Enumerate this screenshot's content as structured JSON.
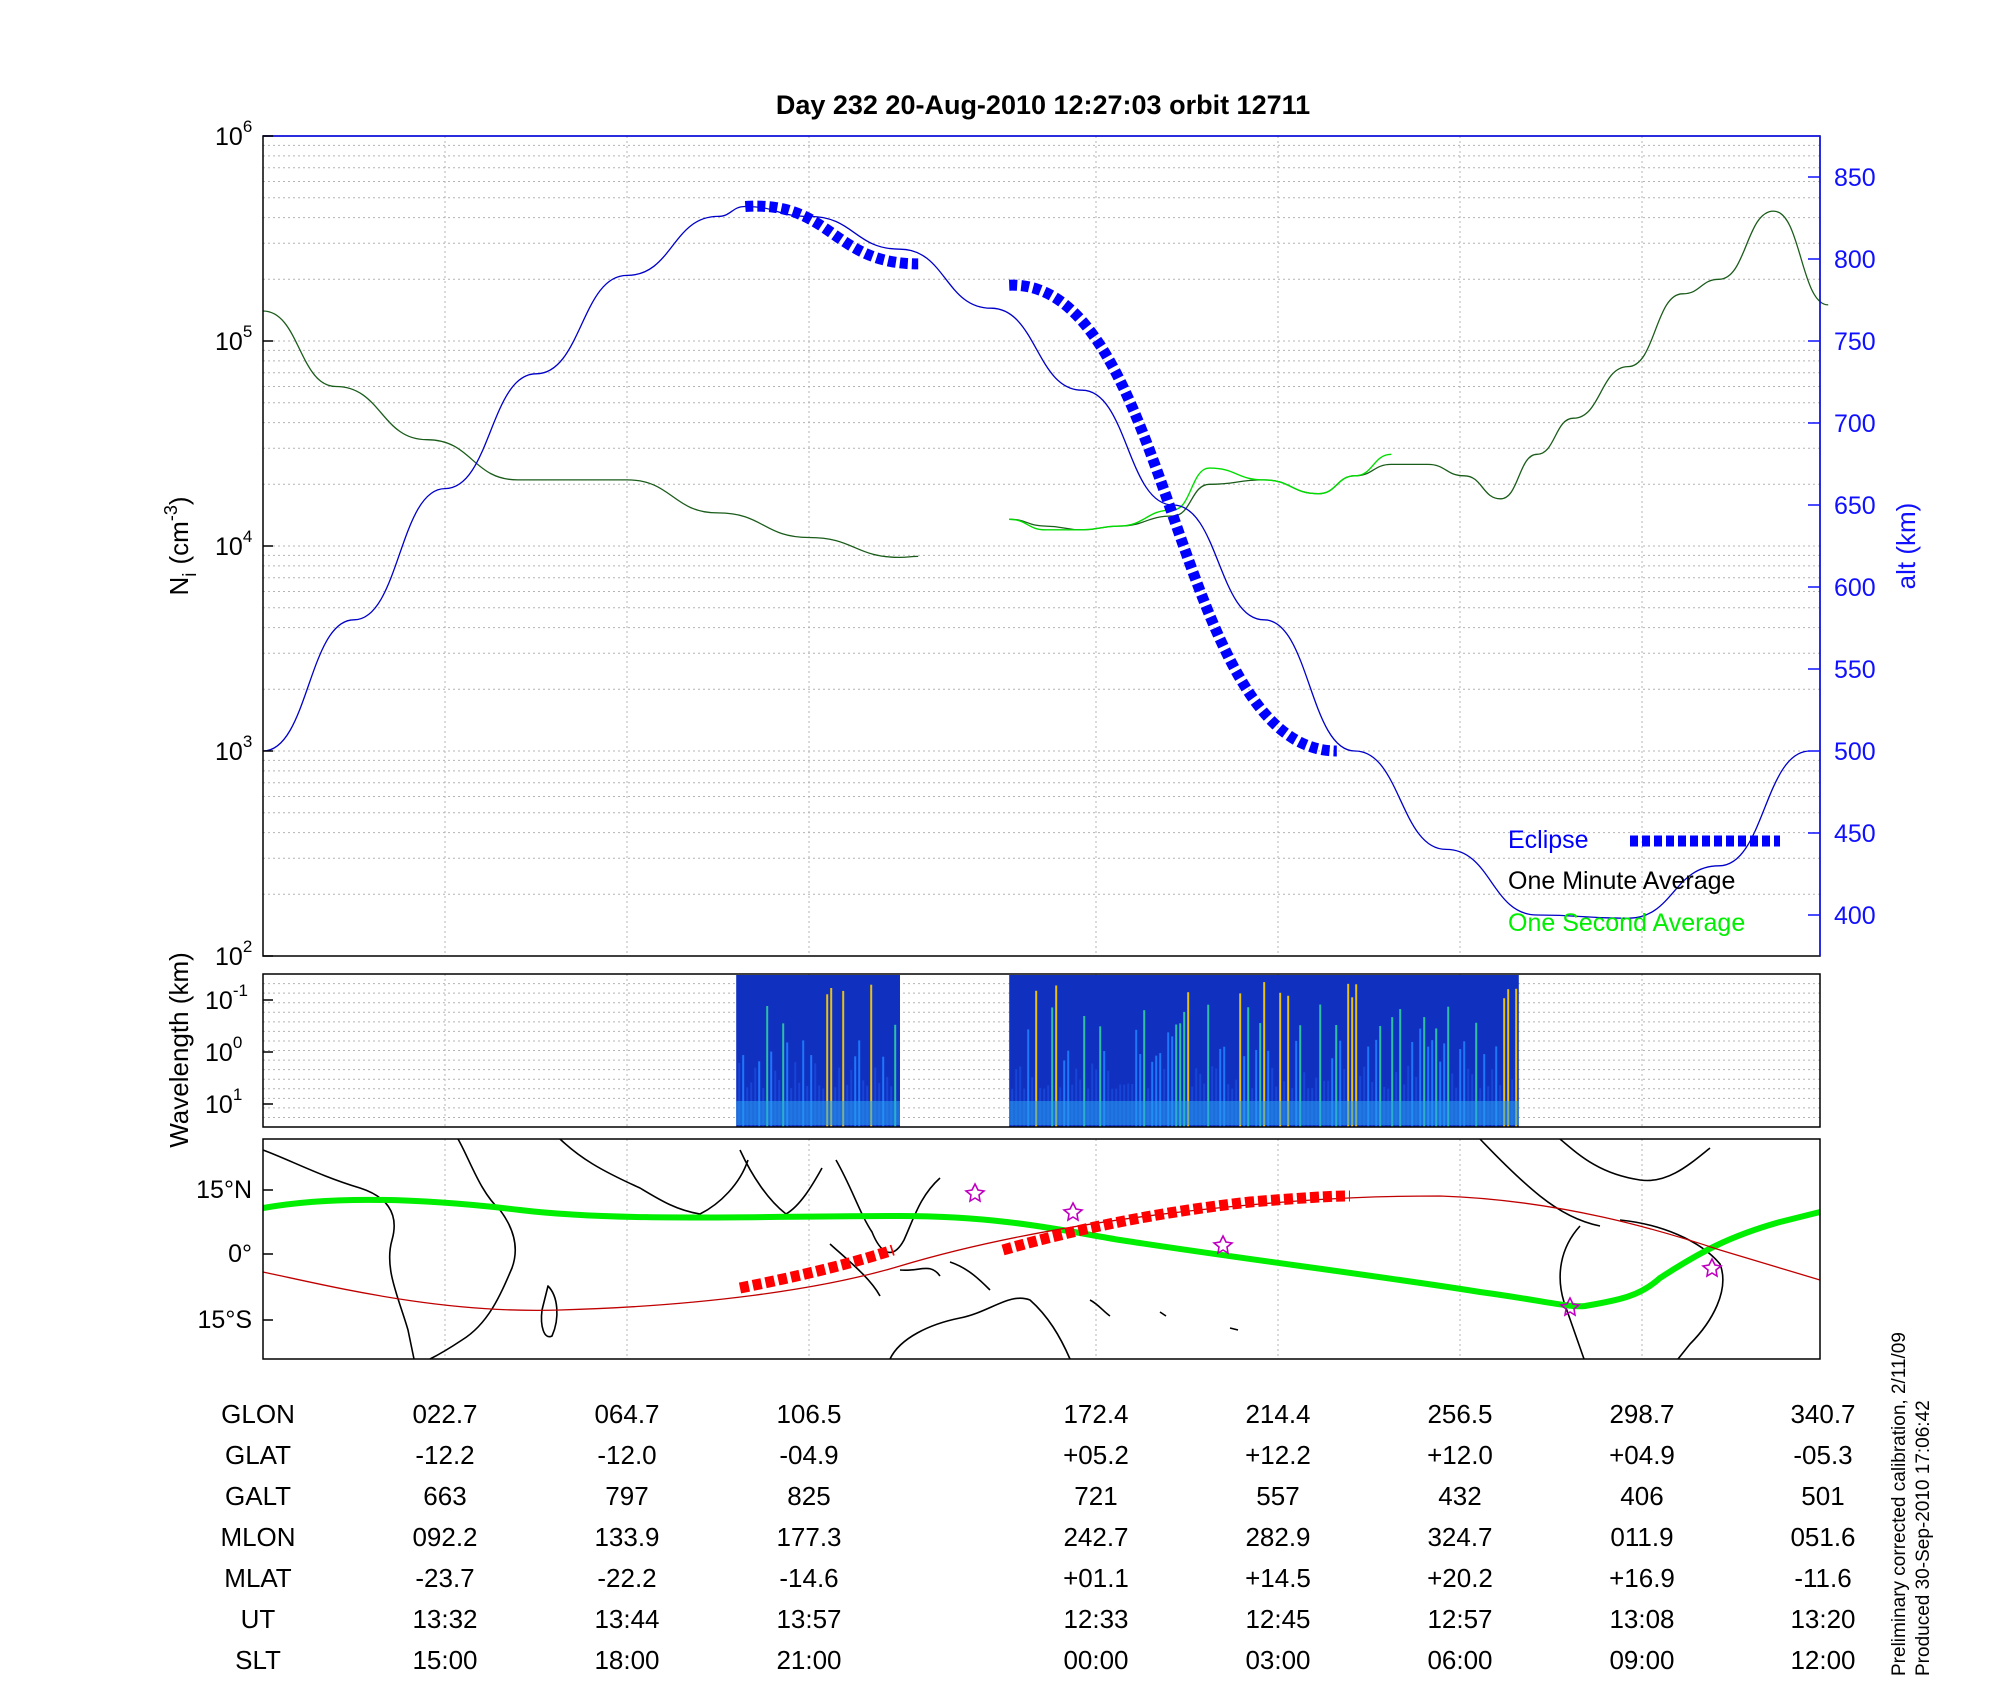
{
  "title": "Day 232  20-Aug-2010 12:27:03   orbit 12711",
  "chart_data": [
    {
      "type": "line",
      "panel": "density",
      "ylabel": "N_i (cm^-3)",
      "ylabel_base": "N",
      "ylabel_sub": "i",
      "ylabel_unit": "(cm",
      "ylabel_exp": "-3",
      "ylabel_close": ")",
      "yscale": "log",
      "ylim": [
        100,
        1000000
      ],
      "y_ticks": [
        {
          "base": "10",
          "exp": "2",
          "value": 100
        },
        {
          "base": "10",
          "exp": "3",
          "value": 1000
        },
        {
          "base": "10",
          "exp": "4",
          "value": 10000
        },
        {
          "base": "10",
          "exp": "5",
          "value": 100000
        },
        {
          "base": "10",
          "exp": "6",
          "value": 1000000
        }
      ],
      "x_ticks_ut": [
        "13:32",
        "13:44",
        "13:57",
        "12:33",
        "12:45",
        "12:57",
        "13:08",
        "13:20"
      ],
      "y2label": "alt (km)",
      "y2lim": [
        375,
        875
      ],
      "y2_ticks": [
        400,
        450,
        500,
        550,
        600,
        650,
        700,
        750,
        800,
        850
      ],
      "grid": true,
      "legend_position": "bottom-right",
      "legend": [
        {
          "label": "Eclipse",
          "color": "#0000ff"
        },
        {
          "label": "One Minute Average",
          "color": "#000000"
        },
        {
          "label": "One Second Average",
          "color": "#00ff00"
        }
      ],
      "series": [
        {
          "name": "One Minute Average",
          "color": "#1a5c1a",
          "x": [
            0,
            0.4,
            0.9,
            1.4,
            2,
            2.5,
            3.0,
            3.5,
            3.6
          ],
          "y": [
            140000,
            60000,
            33000,
            21000,
            21000,
            14500,
            11000,
            8800,
            8900
          ]
        },
        {
          "name": "One Minute Average",
          "color": "#1a5c1a",
          "x": [
            4.1,
            4.3,
            4.5,
            4.7,
            5.0,
            5.2,
            5.5,
            5.8,
            6.0,
            6.2,
            6.4,
            6.6,
            6.8,
            7.0,
            7.2,
            7.5,
            7.8,
            8.0,
            8.3,
            8.6
          ],
          "y": [
            13500,
            12500,
            12000,
            12500,
            14000,
            20000,
            21000,
            18000,
            22000,
            25000,
            25000,
            22000,
            17000,
            28000,
            42000,
            75000,
            170000,
            200000,
            430000,
            150000
          ]
        },
        {
          "name": "One Second Average",
          "color": "#00dd00",
          "x": [
            4.1,
            4.3,
            4.5,
            4.7,
            5.0,
            5.2,
            5.5,
            5.8,
            6.0,
            6.2
          ],
          "y": [
            13500,
            12000,
            12000,
            12500,
            15000,
            24000,
            21000,
            18000,
            22000,
            28000
          ]
        },
        {
          "name": "alt (km)",
          "axis": "right",
          "color": "#0000c8",
          "x": [
            0,
            0.5,
            1,
            1.5,
            2,
            2.5,
            2.65,
            3,
            3.5,
            4,
            4.5,
            5,
            5.5,
            6,
            6.5,
            7,
            7.5,
            8,
            8.5
          ],
          "y": [
            500,
            580,
            660,
            730,
            790,
            826,
            832,
            826,
            806,
            770,
            720,
            650,
            580,
            500,
            440,
            400,
            398,
            430,
            500
          ]
        }
      ],
      "eclipse_segments": [
        {
          "x": [
            2.65,
            3.6
          ],
          "alt": [
            832,
            797
          ]
        },
        {
          "x": [
            4.1,
            5.9
          ],
          "alt": [
            784,
            500
          ]
        }
      ]
    },
    {
      "type": "heatmap",
      "panel": "spectrogram",
      "ylabel": "Wavelength (km)",
      "y_ticks": [
        {
          "base": "10",
          "exp": "-1"
        },
        {
          "base": "10",
          "exp": "0"
        },
        {
          "base": "10",
          "exp": "1"
        }
      ],
      "data_ranges_x": [
        [
          2.6,
          3.5
        ],
        [
          4.1,
          6.9
        ]
      ]
    },
    {
      "type": "line",
      "panel": "map",
      "y_ticks": [
        "15°N",
        "0°",
        "15°S"
      ],
      "series": [
        {
          "name": "magnetic equator",
          "color": "#00ee00"
        },
        {
          "name": "ground track",
          "color": "#cc0000"
        }
      ]
    }
  ],
  "table": {
    "rows": [
      {
        "label": "GLON",
        "values": [
          "022.7",
          "064.7",
          "106.5",
          "172.4",
          "214.4",
          "256.5",
          "298.7",
          "340.7"
        ]
      },
      {
        "label": "GLAT",
        "values": [
          "-12.2",
          "-12.0",
          "-04.9",
          "+05.2",
          "+12.2",
          "+12.0",
          "+04.9",
          "-05.3"
        ]
      },
      {
        "label": "GALT",
        "values": [
          "663",
          "797",
          "825",
          "721",
          "557",
          "432",
          "406",
          "501"
        ]
      },
      {
        "label": "MLON",
        "values": [
          "092.2",
          "133.9",
          "177.3",
          "242.7",
          "282.9",
          "324.7",
          "011.9",
          "051.6"
        ]
      },
      {
        "label": "MLAT",
        "values": [
          "-23.7",
          "-22.2",
          "-14.6",
          "+01.1",
          "+14.5",
          "+20.2",
          "+16.9",
          "-11.6"
        ]
      },
      {
        "label": "UT",
        "values": [
          "13:32",
          "13:44",
          "13:57",
          "12:33",
          "12:45",
          "12:57",
          "13:08",
          "13:20"
        ]
      },
      {
        "label": "SLT",
        "values": [
          "15:00",
          "18:00",
          "21:00",
          "00:00",
          "03:00",
          "06:00",
          "09:00",
          "12:00"
        ]
      }
    ]
  },
  "footnote": {
    "line1": "Preliminary corrected calibration, 2/11/09",
    "line2": "Produced 30-Sep-2010 17:06:42"
  },
  "colors": {
    "eclipse": "#0000ff",
    "altitude": "#0000c8",
    "density": "#1a5c1a",
    "one_second": "#00ff00",
    "track": "#ff0000",
    "equator": "#00ee00",
    "right_axis": "#1010ff"
  }
}
